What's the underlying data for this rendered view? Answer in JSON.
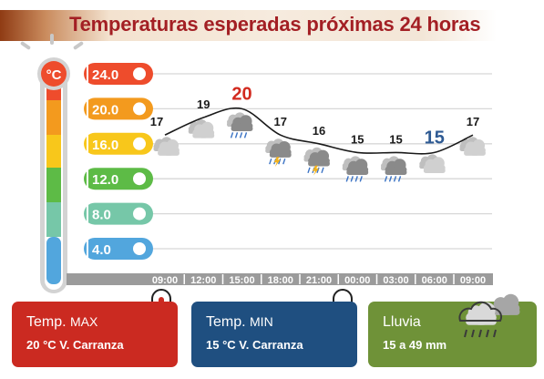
{
  "header": {
    "title": "Temperaturas esperadas próximas 24 horas"
  },
  "thermometer": {
    "unit": "°C"
  },
  "chart_data": {
    "type": "line",
    "title": "Temperaturas esperadas próximas 24 horas",
    "xlabel": "",
    "ylabel": "",
    "ylim": [
      2.5,
      26
    ],
    "y_ticks": [
      "24.0",
      "20.0",
      "16.0",
      "12.0",
      "8.0",
      "4.0"
    ],
    "y_tick_values": [
      24,
      20,
      16,
      12,
      8,
      4
    ],
    "y_tick_colors": [
      "#ee4c2c",
      "#f39a1e",
      "#f8c71b",
      "#5dbb46",
      "#76c7a8",
      "#52a6dd"
    ],
    "x": [
      "09:00",
      "12:00",
      "15:00",
      "18:00",
      "21:00",
      "00:00",
      "03:00",
      "06:00",
      "09:00"
    ],
    "series": [
      {
        "values": [
          17,
          19,
          20,
          17,
          16,
          15,
          15,
          15,
          17
        ]
      }
    ],
    "point_labels": [
      "17",
      "19",
      "20",
      "17",
      "16",
      "15",
      "15",
      "15",
      "17"
    ],
    "max_index": 2,
    "min_index": 7,
    "weather_icons": [
      "cloudy",
      "cloudy",
      "cloud-rain",
      "cloud-storm",
      "cloud-storm",
      "cloud-rain",
      "cloud-rain",
      "cloudy",
      "cloudy"
    ],
    "grid": true,
    "legend": "none"
  },
  "cards": {
    "max": {
      "label_main": "Temp. ",
      "label_small": "MAX",
      "value": "20 °C  V. Carranza"
    },
    "min": {
      "label_main": "Temp. ",
      "label_small": "MIN",
      "value": "15 °C  V. Carranza"
    },
    "rain": {
      "label": "Lluvia",
      "value": "15 a 49 mm"
    }
  },
  "colors": {
    "title": "#a31f24",
    "max": "#cb2a21",
    "min": "#1f4f80",
    "rain": "#6f9238",
    "max_label": "#d22a1f",
    "min_label": "#2e5a93"
  }
}
